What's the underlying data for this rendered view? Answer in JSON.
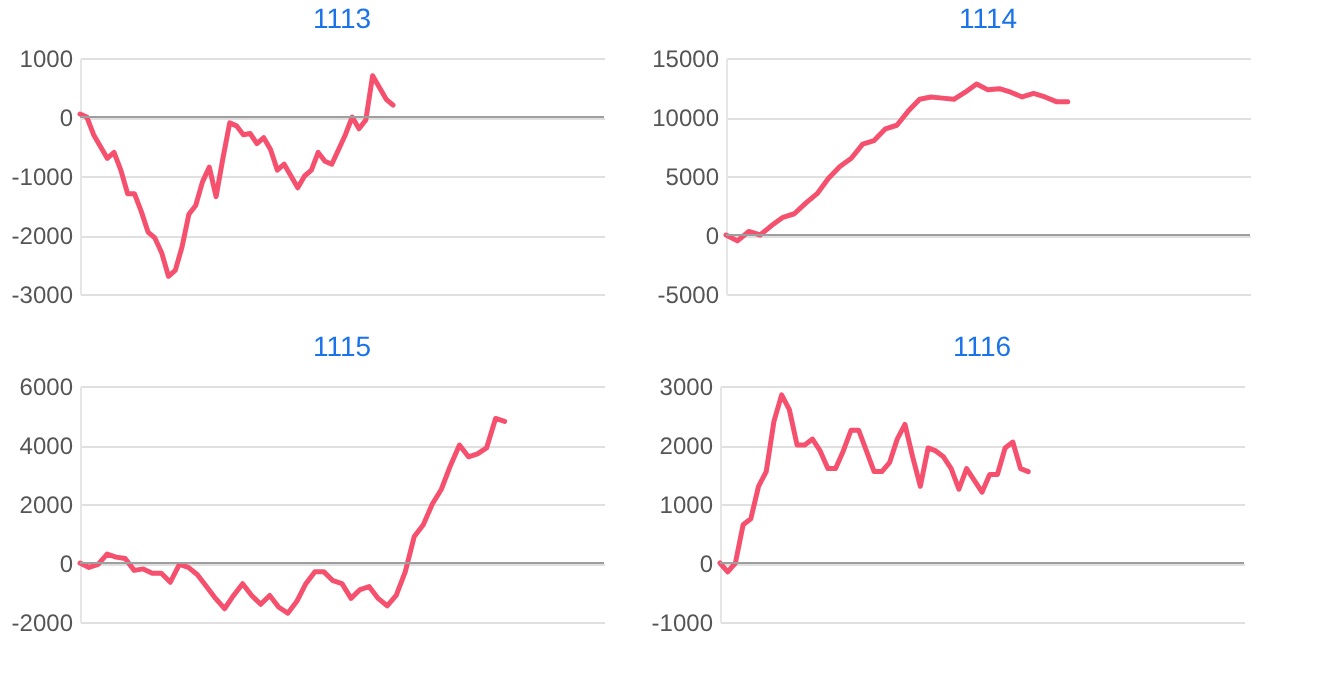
{
  "chart_data": [
    {
      "type": "line",
      "title": "1113",
      "categories": [
        null,
        null,
        null,
        null,
        null,
        null,
        null,
        null,
        null,
        null,
        null,
        null,
        null,
        null,
        null,
        null,
        null,
        null,
        null,
        null,
        null,
        null,
        null,
        null,
        null,
        null,
        null,
        null,
        null,
        null,
        null,
        null,
        null,
        null,
        null,
        null,
        null,
        null,
        null,
        null,
        null,
        null,
        null,
        null,
        null,
        null,
        null,
        null,
        null,
        null,
        null,
        null,
        null,
        null,
        null,
        null,
        null,
        null,
        null,
        null,
        null,
        null,
        null,
        null,
        null,
        null,
        null,
        null,
        null,
        null,
        null,
        null,
        null,
        null,
        null,
        null,
        null,
        null
      ],
      "series": [
        {
          "color": "#f5506e",
          "values": [
            50,
            0,
            -300,
            -500,
            -700,
            -600,
            -900,
            -1300,
            -1300,
            -1600,
            -1950,
            -2050,
            -2300,
            -2700,
            -2600,
            -2200,
            -1650,
            -1500,
            -1100,
            -850,
            -1350,
            -700,
            -100,
            -150,
            -300,
            -280,
            -450,
            -350,
            -550,
            -900,
            -800,
            -1000,
            -1200,
            -1000,
            -900,
            -600,
            -750,
            -800,
            -550,
            -300,
            0,
            -200,
            -50,
            700,
            500,
            300,
            200,
            null,
            null,
            null,
            null,
            null,
            null,
            null,
            null,
            null,
            null,
            null,
            null,
            null,
            null,
            null,
            null,
            null,
            null,
            null,
            null,
            null,
            null,
            null,
            null,
            null,
            null,
            null,
            null,
            null,
            null,
            null
          ]
        }
      ],
      "ylim": [
        -3000,
        1000
      ],
      "yticks": [
        -3000,
        -2000,
        -1000,
        0,
        1000
      ],
      "grid": "y",
      "tick_labels": "y",
      "line_style": "solid",
      "marker": "none",
      "ref_lines": [
        {
          "axis": "y",
          "value": 0,
          "color": "#9e9e9e"
        }
      ]
    },
    {
      "type": "line",
      "title": "1114",
      "categories": [
        null,
        null,
        null,
        null,
        null,
        null,
        null,
        null,
        null,
        null,
        null,
        null,
        null,
        null,
        null,
        null,
        null,
        null,
        null,
        null,
        null,
        null,
        null,
        null,
        null,
        null,
        null,
        null,
        null,
        null,
        null,
        null,
        null,
        null,
        null,
        null,
        null,
        null,
        null,
        null,
        null,
        null,
        null,
        null,
        null,
        null,
        null
      ],
      "series": [
        {
          "color": "#f5506e",
          "values": [
            0,
            -500,
            300,
            0,
            800,
            1500,
            1800,
            2700,
            3500,
            4800,
            5800,
            6500,
            7700,
            8000,
            9000,
            9300,
            10500,
            11500,
            11700,
            11600,
            11500,
            12100,
            12800,
            12300,
            12400,
            12100,
            11700,
            12000,
            11700,
            11300,
            11300,
            null,
            null,
            null,
            null,
            null,
            null,
            null,
            null,
            null,
            null,
            null,
            null,
            null,
            null,
            null,
            null
          ]
        }
      ],
      "ylim": [
        -5000,
        15000
      ],
      "yticks": [
        -5000,
        0,
        5000,
        10000,
        15000
      ],
      "grid": "y",
      "tick_labels": "y",
      "line_style": "solid",
      "marker": "none",
      "ref_lines": [
        {
          "axis": "y",
          "value": 0,
          "color": "#9e9e9e"
        }
      ]
    },
    {
      "type": "line",
      "title": "1115",
      "categories": [
        null,
        null,
        null,
        null,
        null,
        null,
        null,
        null,
        null,
        null,
        null,
        null,
        null,
        null,
        null,
        null,
        null,
        null,
        null,
        null,
        null,
        null,
        null,
        null,
        null,
        null,
        null,
        null,
        null,
        null,
        null,
        null,
        null,
        null,
        null,
        null,
        null,
        null,
        null,
        null,
        null,
        null,
        null,
        null,
        null,
        null,
        null,
        null,
        null,
        null,
        null,
        null,
        null,
        null,
        null,
        null,
        null,
        null,
        null
      ],
      "series": [
        {
          "color": "#f5506e",
          "values": [
            0,
            -150,
            -50,
            300,
            200,
            150,
            -250,
            -200,
            -350,
            -350,
            -650,
            -50,
            -150,
            -400,
            -800,
            -1200,
            -1550,
            -1100,
            -700,
            -1100,
            -1400,
            -1100,
            -1500,
            -1700,
            -1300,
            -700,
            -300,
            -300,
            -600,
            -700,
            -1200,
            -900,
            -800,
            -1200,
            -1450,
            -1100,
            -300,
            900,
            1300,
            2000,
            2500,
            3300,
            4000,
            3600,
            3700,
            3900,
            4900,
            4800,
            null,
            null,
            null,
            null,
            null,
            null,
            null,
            null,
            null,
            null,
            null
          ]
        }
      ],
      "ylim": [
        -2000,
        6000
      ],
      "yticks": [
        -2000,
        0,
        2000,
        4000,
        6000
      ],
      "grid": "y",
      "tick_labels": "y",
      "line_style": "solid",
      "marker": "none",
      "ref_lines": [
        {
          "axis": "y",
          "value": 0,
          "color": "#9e9e9e"
        }
      ]
    },
    {
      "type": "line",
      "title": "1116",
      "categories": [
        null,
        null,
        null,
        null,
        null,
        null,
        null,
        null,
        null,
        null,
        null,
        null,
        null,
        null,
        null,
        null,
        null,
        null,
        null,
        null,
        null,
        null,
        null,
        null,
        null,
        null,
        null,
        null,
        null,
        null,
        null,
        null,
        null,
        null,
        null,
        null,
        null,
        null,
        null,
        null,
        null,
        null,
        null,
        null,
        null,
        null,
        null,
        null,
        null,
        null,
        null,
        null,
        null,
        null,
        null,
        null,
        null,
        null,
        null,
        null,
        null,
        null,
        null,
        null,
        null,
        null,
        null,
        null,
        null
      ],
      "series": [
        {
          "color": "#f5506e",
          "values": [
            0,
            -150,
            0,
            650,
            750,
            1300,
            1550,
            2400,
            2850,
            2600,
            2000,
            2000,
            2100,
            1900,
            1600,
            1600,
            1900,
            2250,
            2250,
            1900,
            1550,
            1550,
            1700,
            2100,
            2350,
            1800,
            1300,
            1950,
            1900,
            1800,
            1600,
            1250,
            1600,
            1400,
            1200,
            1500,
            1500,
            1950,
            2050,
            1600,
            1550,
            null,
            null,
            null,
            null,
            null,
            null,
            null,
            null,
            null,
            null,
            null,
            null,
            null,
            null,
            null,
            null,
            null,
            null,
            null,
            null,
            null,
            null,
            null,
            null,
            null,
            null,
            null,
            null
          ]
        }
      ],
      "ylim": [
        -1000,
        3000
      ],
      "yticks": [
        -1000,
        0,
        1000,
        2000,
        3000
      ],
      "grid": "y",
      "tick_labels": "y",
      "line_style": "solid",
      "marker": "none",
      "ref_lines": [
        {
          "axis": "y",
          "value": 0,
          "color": "#9e9e9e"
        }
      ]
    }
  ]
}
